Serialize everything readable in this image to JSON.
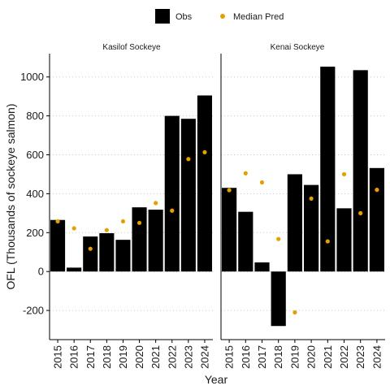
{
  "chart_data": {
    "type": "bar",
    "xlabel": "Year",
    "ylabel": "OFL (Thousands of sockeye salmon)",
    "ylim": [
      -350,
      1120
    ],
    "y_ticks": [
      "-200",
      "0",
      "200",
      "400",
      "600",
      "800",
      "1000"
    ],
    "y_tick_values": [
      -200,
      0,
      200,
      400,
      600,
      800,
      1000
    ],
    "grid": "horizontal dotted",
    "legend": {
      "placement": "top",
      "entries": [
        {
          "label": "Obs",
          "kind": "bar",
          "color": "#000000"
        },
        {
          "label": "Median Pred",
          "kind": "point",
          "color": "#E69F00"
        }
      ]
    },
    "categories": [
      "2015",
      "2016",
      "2017",
      "2018",
      "2019",
      "2020",
      "2021",
      "2022",
      "2023",
      "2024"
    ],
    "panels": [
      {
        "title": "Kasilof Sockeye",
        "obs": [
          265,
          20,
          180,
          197,
          163,
          330,
          318,
          800,
          785,
          905
        ],
        "median_pred": [
          258,
          222,
          117,
          213,
          258,
          250,
          352,
          313,
          578,
          613
        ]
      },
      {
        "title": "Kenai Sockeye",
        "obs": [
          430,
          307,
          47,
          -280,
          500,
          445,
          1053,
          325,
          1035,
          532
        ],
        "median_pred": [
          418,
          505,
          458,
          167,
          -210,
          375,
          155,
          500,
          300,
          420
        ]
      }
    ],
    "colors": {
      "obs": "#000000",
      "median_pred": "#E69F00",
      "grid": "#c8c8c8"
    }
  }
}
